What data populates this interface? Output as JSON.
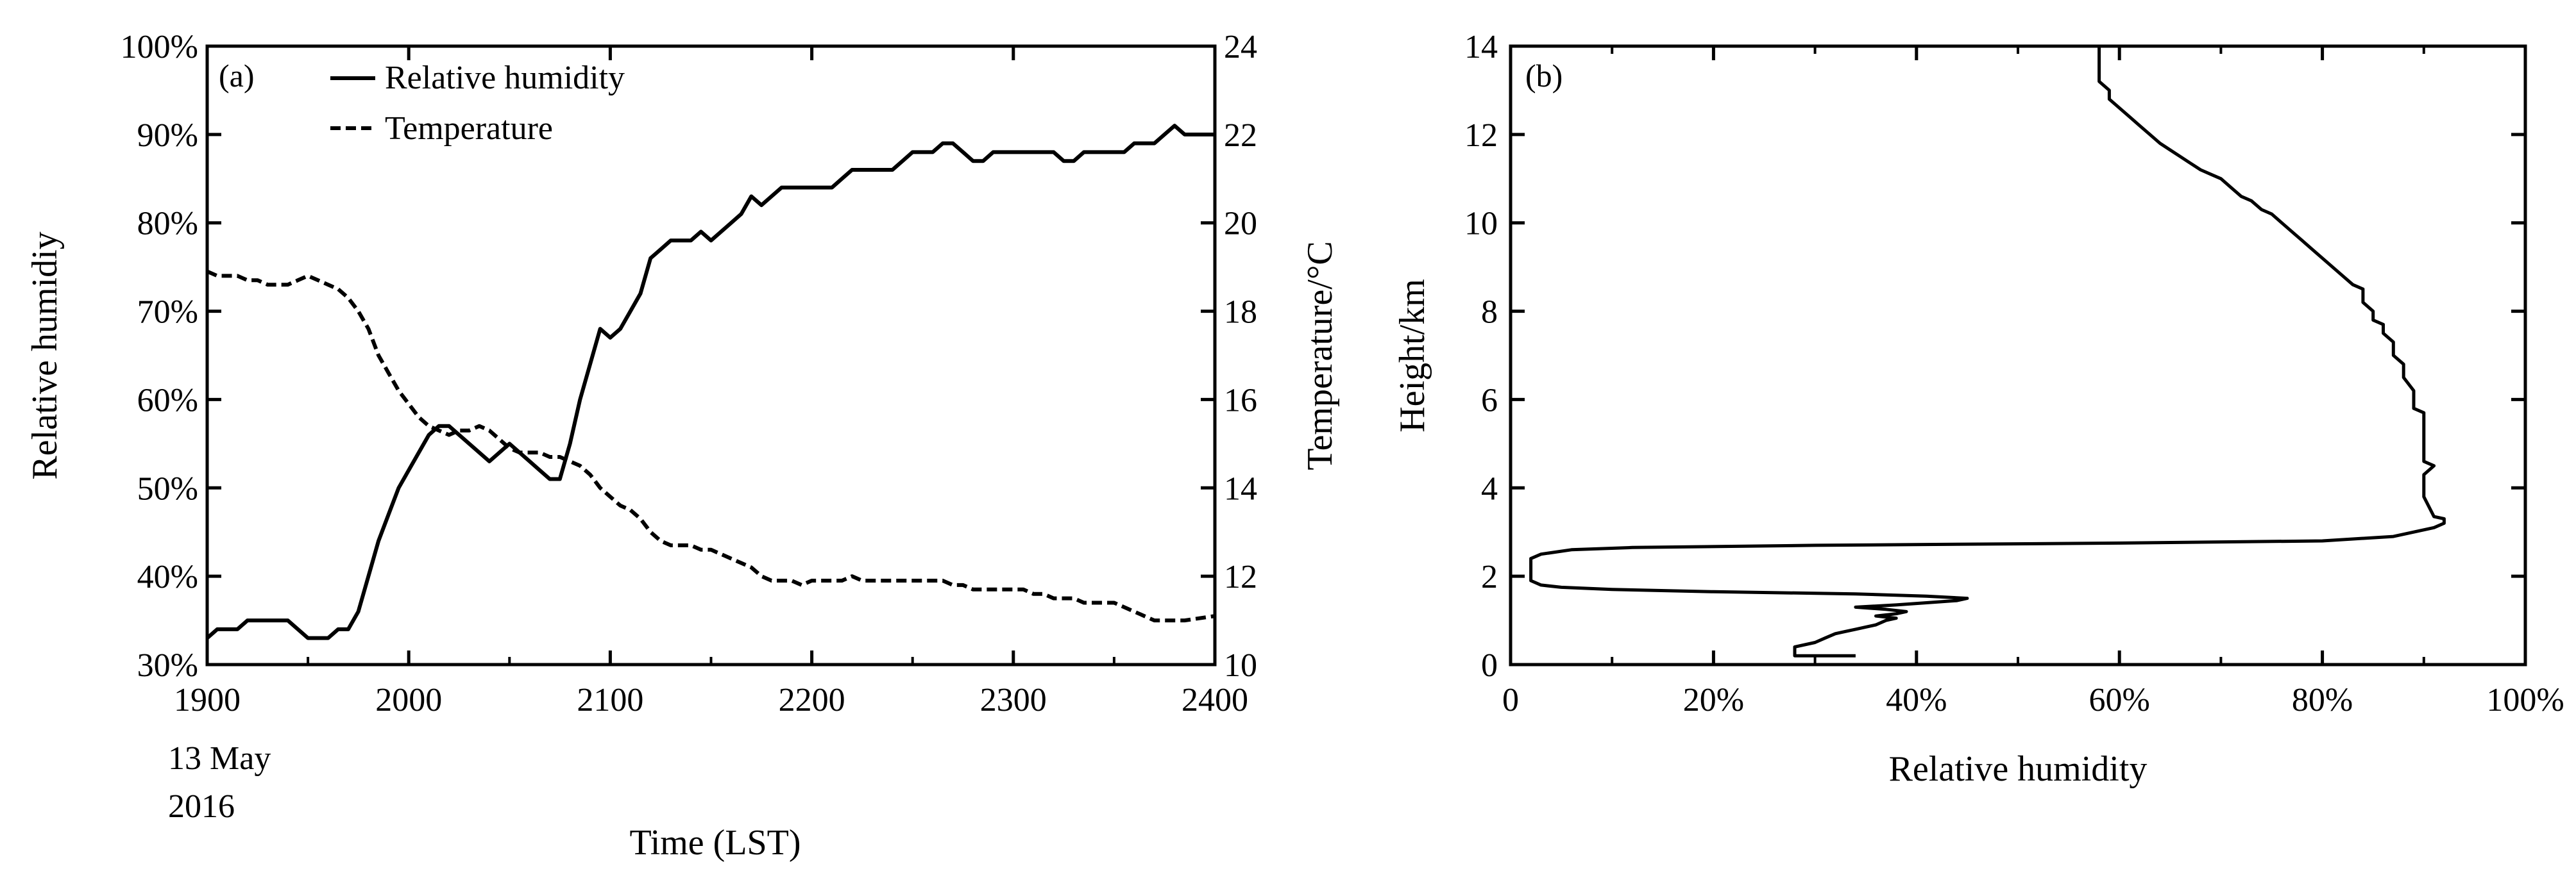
{
  "colors": {
    "ink": "#000000",
    "background": "#ffffff"
  },
  "chart_data": [
    {
      "type": "line",
      "panel_label": "(a)",
      "xlabel": "Time (LST)",
      "date_note": [
        "13 May",
        "2016"
      ],
      "ylabel": "Relative humidiy",
      "y2label": "Temperature/°C",
      "xlim": [
        1900,
        2400
      ],
      "ylim": [
        30,
        100
      ],
      "y2lim": [
        10,
        24
      ],
      "xticks": [
        1900,
        2000,
        2100,
        2200,
        2300,
        2400
      ],
      "xtick_labels": [
        "1900",
        "2000",
        "2100",
        "2200",
        "2300",
        "2400"
      ],
      "yticks": [
        30,
        40,
        50,
        60,
        70,
        80,
        90,
        100
      ],
      "ytick_labels": [
        "30%",
        "40%",
        "50%",
        "60%",
        "70%",
        "80%",
        "90%",
        "100%"
      ],
      "y2ticks": [
        10,
        12,
        14,
        16,
        18,
        20,
        22,
        24
      ],
      "y2tick_labels": [
        "10",
        "12",
        "14",
        "16",
        "18",
        "20",
        "22",
        "24"
      ],
      "legend": {
        "position": "top-left",
        "entries": [
          "Relative humidity",
          "Temperature"
        ]
      },
      "grid": false,
      "series": [
        {
          "name": "Relative humidity",
          "axis": "left",
          "line_style": "solid",
          "x": [
            1900,
            1905,
            1910,
            1915,
            1920,
            1925,
            1930,
            1935,
            1940,
            1945,
            1950,
            1955,
            1960,
            1965,
            1970,
            1975,
            1980,
            1985,
            1990,
            1995,
            2000,
            2005,
            2010,
            2015,
            2020,
            2025,
            2030,
            2035,
            2040,
            2045,
            2050,
            2055,
            2060,
            2065,
            2070,
            2075,
            2080,
            2085,
            2090,
            2095,
            2100,
            2105,
            2110,
            2115,
            2120,
            2125,
            2130,
            2135,
            2140,
            2145,
            2150,
            2155,
            2160,
            2165,
            2170,
            2175,
            2180,
            2185,
            2190,
            2195,
            2200,
            2205,
            2210,
            2215,
            2220,
            2225,
            2230,
            2235,
            2240,
            2245,
            2250,
            2255,
            2260,
            2265,
            2270,
            2275,
            2280,
            2285,
            2290,
            2295,
            2300,
            2305,
            2310,
            2315,
            2320,
            2325,
            2330,
            2335,
            2340,
            2345,
            2350,
            2355,
            2360,
            2365,
            2370,
            2375,
            2380,
            2385,
            2390,
            2395,
            2400
          ],
          "values": [
            33,
            34,
            34,
            34,
            35,
            35,
            35,
            35,
            35,
            34,
            33,
            33,
            33,
            34,
            34,
            36,
            40,
            44,
            47,
            50,
            52,
            54,
            56,
            57,
            57,
            56,
            55,
            54,
            53,
            54,
            55,
            54,
            53,
            52,
            51,
            51,
            55,
            60,
            64,
            68,
            67,
            68,
            70,
            72,
            76,
            77,
            78,
            78,
            78,
            79,
            78,
            79,
            80,
            81,
            83,
            82,
            83,
            84,
            84,
            84,
            84,
            84,
            84,
            85,
            86,
            86,
            86,
            86,
            86,
            87,
            88,
            88,
            88,
            89,
            89,
            88,
            87,
            87,
            88,
            88,
            88,
            88,
            88,
            88,
            88,
            87,
            87,
            88,
            88,
            88,
            88,
            88,
            89,
            89,
            89,
            90,
            91,
            90,
            90,
            90,
            90
          ]
        },
        {
          "name": "Temperature",
          "axis": "right",
          "line_style": "dashed",
          "x": [
            1900,
            1905,
            1910,
            1915,
            1920,
            1925,
            1930,
            1935,
            1940,
            1945,
            1950,
            1955,
            1960,
            1965,
            1970,
            1975,
            1980,
            1985,
            1990,
            1995,
            2000,
            2005,
            2010,
            2015,
            2020,
            2025,
            2030,
            2035,
            2040,
            2045,
            2050,
            2055,
            2060,
            2065,
            2070,
            2075,
            2080,
            2085,
            2090,
            2095,
            2100,
            2105,
            2110,
            2115,
            2120,
            2125,
            2130,
            2135,
            2140,
            2145,
            2150,
            2155,
            2160,
            2165,
            2170,
            2175,
            2180,
            2185,
            2190,
            2195,
            2200,
            2205,
            2210,
            2215,
            2220,
            2225,
            2230,
            2235,
            2240,
            2245,
            2250,
            2255,
            2260,
            2265,
            2270,
            2275,
            2280,
            2285,
            2290,
            2295,
            2300,
            2305,
            2310,
            2315,
            2320,
            2325,
            2330,
            2335,
            2340,
            2345,
            2350,
            2355,
            2360,
            2365,
            2370,
            2375,
            2380,
            2385,
            2400
          ],
          "values": [
            18.9,
            18.8,
            18.8,
            18.8,
            18.7,
            18.7,
            18.6,
            18.6,
            18.6,
            18.7,
            18.8,
            18.7,
            18.6,
            18.5,
            18.3,
            18.0,
            17.6,
            17.0,
            16.6,
            16.2,
            15.9,
            15.6,
            15.4,
            15.3,
            15.2,
            15.3,
            15.3,
            15.4,
            15.3,
            15.1,
            14.9,
            14.8,
            14.8,
            14.8,
            14.7,
            14.7,
            14.6,
            14.5,
            14.3,
            14.0,
            13.8,
            13.6,
            13.5,
            13.3,
            13.0,
            12.8,
            12.7,
            12.7,
            12.7,
            12.6,
            12.6,
            12.5,
            12.4,
            12.3,
            12.2,
            12.0,
            11.9,
            11.9,
            11.9,
            11.8,
            11.9,
            11.9,
            11.9,
            11.9,
            12.0,
            11.9,
            11.9,
            11.9,
            11.9,
            11.9,
            11.9,
            11.9,
            11.9,
            11.9,
            11.8,
            11.8,
            11.7,
            11.7,
            11.7,
            11.7,
            11.7,
            11.7,
            11.6,
            11.6,
            11.5,
            11.5,
            11.5,
            11.4,
            11.4,
            11.4,
            11.4,
            11.3,
            11.2,
            11.1,
            11.0,
            11.0,
            11.0,
            11.0,
            11.1
          ]
        }
      ]
    },
    {
      "type": "line",
      "panel_label": "(b)",
      "xlabel": "Relative humidity",
      "ylabel": "Height/km",
      "xlim": [
        0,
        100
      ],
      "ylim": [
        0,
        14
      ],
      "xticks": [
        0,
        20,
        40,
        60,
        80,
        100
      ],
      "xtick_labels": [
        "0",
        "20%",
        "40%",
        "60%",
        "80%",
        "100%"
      ],
      "yticks": [
        0,
        2,
        4,
        6,
        8,
        10,
        12,
        14
      ],
      "ytick_labels": [
        "0",
        "2",
        "4",
        "6",
        "8",
        "10",
        "12",
        "14"
      ],
      "grid": false,
      "series": [
        {
          "line_style": "solid",
          "points": [
            [
              34,
              0.2
            ],
            [
              28,
              0.2
            ],
            [
              28,
              0.4
            ],
            [
              30,
              0.5
            ],
            [
              31,
              0.6
            ],
            [
              32,
              0.7
            ],
            [
              33,
              0.75
            ],
            [
              34,
              0.8
            ],
            [
              35,
              0.85
            ],
            [
              36,
              0.9
            ],
            [
              37,
              1.0
            ],
            [
              38,
              1.05
            ],
            [
              36,
              1.1
            ],
            [
              38,
              1.15
            ],
            [
              39,
              1.2
            ],
            [
              37,
              1.25
            ],
            [
              34,
              1.3
            ],
            [
              38,
              1.35
            ],
            [
              41,
              1.4
            ],
            [
              44,
              1.45
            ],
            [
              45,
              1.5
            ],
            [
              41,
              1.55
            ],
            [
              34,
              1.6
            ],
            [
              20,
              1.65
            ],
            [
              10,
              1.7
            ],
            [
              5,
              1.75
            ],
            [
              3,
              1.8
            ],
            [
              2,
              1.9
            ],
            [
              2,
              2.0
            ],
            [
              2,
              2.2
            ],
            [
              2,
              2.4
            ],
            [
              3,
              2.5
            ],
            [
              6,
              2.6
            ],
            [
              12,
              2.65
            ],
            [
              30,
              2.7
            ],
            [
              60,
              2.75
            ],
            [
              80,
              2.8
            ],
            [
              87,
              2.9
            ],
            [
              89,
              3.0
            ],
            [
              91,
              3.1
            ],
            [
              92,
              3.2
            ],
            [
              92,
              3.3
            ],
            [
              91,
              3.35
            ],
            [
              90,
              3.8
            ],
            [
              90,
              4.0
            ],
            [
              90,
              4.3
            ],
            [
              91,
              4.5
            ],
            [
              90,
              4.6
            ],
            [
              90,
              5.0
            ],
            [
              90,
              5.7
            ],
            [
              89,
              5.8
            ],
            [
              89,
              6.2
            ],
            [
              88,
              6.5
            ],
            [
              88,
              6.8
            ],
            [
              87,
              7.0
            ],
            [
              87,
              7.3
            ],
            [
              86,
              7.5
            ],
            [
              86,
              7.7
            ],
            [
              85,
              7.8
            ],
            [
              85,
              8.0
            ],
            [
              84,
              8.2
            ],
            [
              84,
              8.5
            ],
            [
              83,
              8.6
            ],
            [
              82,
              8.8
            ],
            [
              81,
              9.0
            ],
            [
              80,
              9.2
            ],
            [
              79,
              9.4
            ],
            [
              78,
              9.6
            ],
            [
              77,
              9.8
            ],
            [
              76,
              10.0
            ],
            [
              75,
              10.2
            ],
            [
              74,
              10.3
            ],
            [
              73,
              10.5
            ],
            [
              72,
              10.6
            ],
            [
              71,
              10.8
            ],
            [
              70,
              11.0
            ],
            [
              69,
              11.1
            ],
            [
              68,
              11.2
            ],
            [
              67,
              11.35
            ],
            [
              66,
              11.5
            ],
            [
              65,
              11.65
            ],
            [
              64,
              11.8
            ],
            [
              63,
              12.0
            ],
            [
              62,
              12.2
            ],
            [
              61,
              12.4
            ],
            [
              60,
              12.6
            ],
            [
              59,
              12.8
            ],
            [
              59,
              13.0
            ],
            [
              58,
              13.2
            ],
            [
              58,
              13.5
            ],
            [
              58,
              13.8
            ],
            [
              58,
              14.0
            ]
          ]
        }
      ]
    }
  ]
}
